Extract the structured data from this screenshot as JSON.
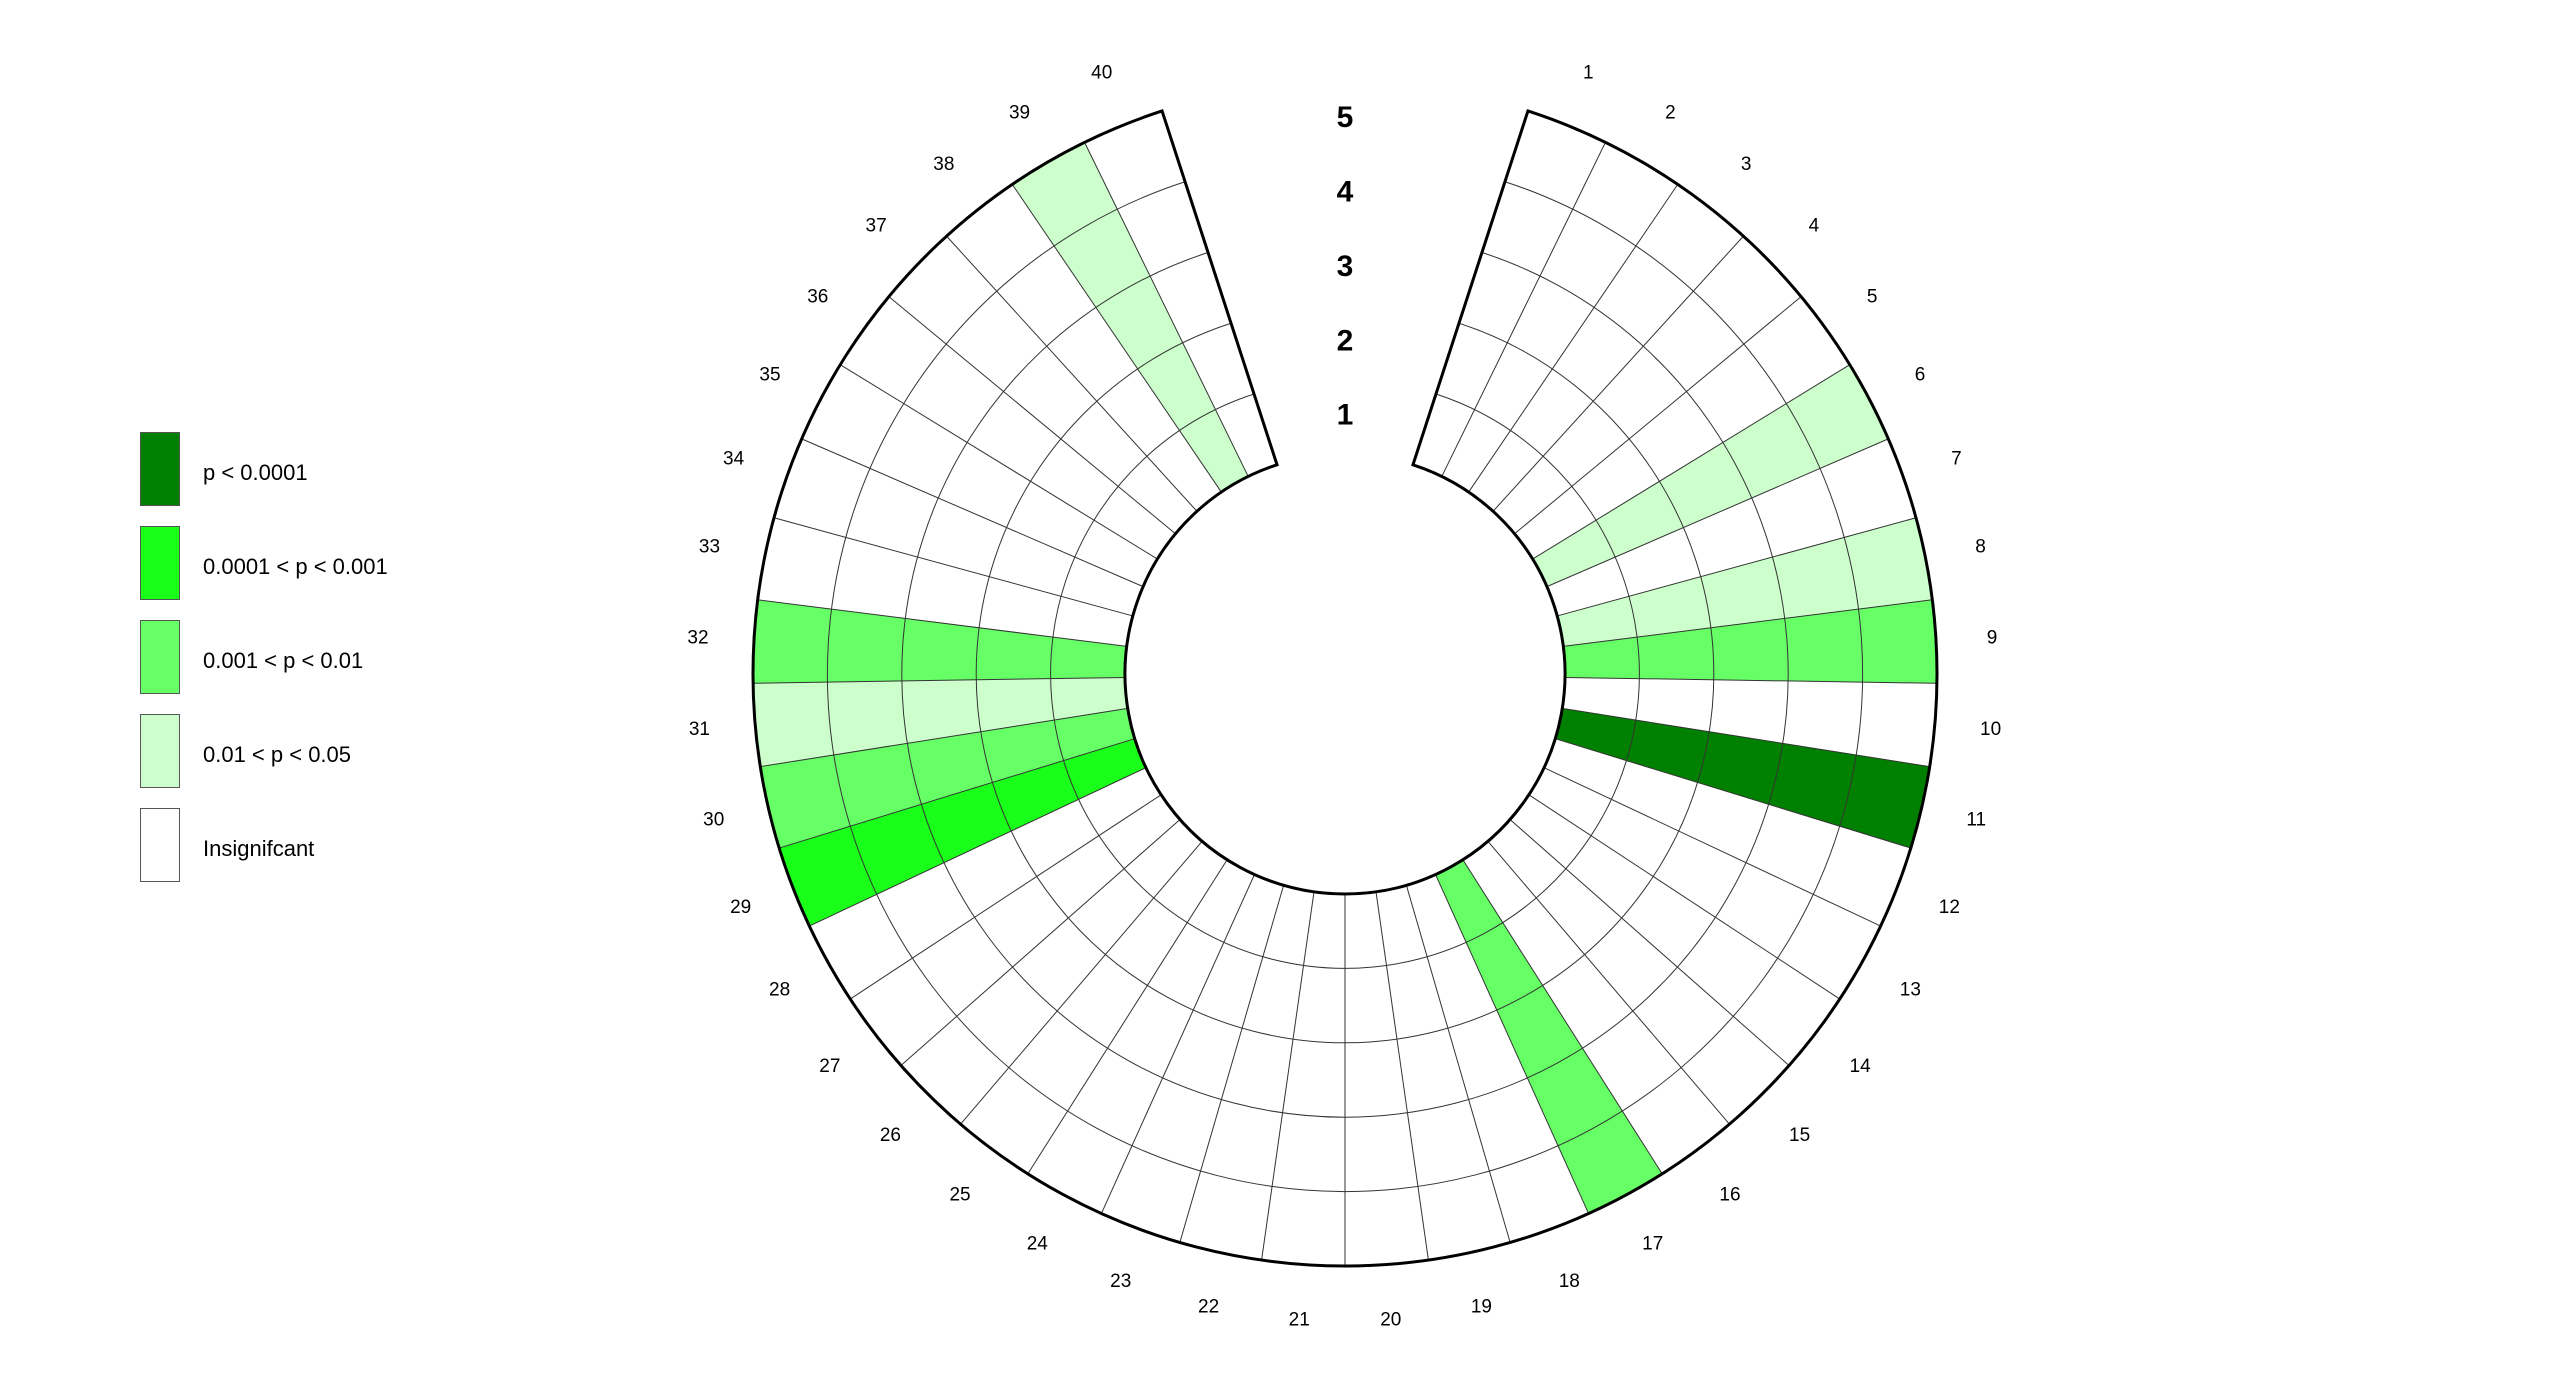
{
  "chart_data": {
    "type": "polar-heatmap",
    "title": "",
    "segments": [
      "1",
      "2",
      "3",
      "4",
      "5",
      "6",
      "7",
      "8",
      "9",
      "10",
      "11",
      "12",
      "13",
      "14",
      "15",
      "16",
      "17",
      "18",
      "19",
      "20",
      "21",
      "22",
      "23",
      "24",
      "25",
      "26",
      "27",
      "28",
      "29",
      "30",
      "31",
      "32",
      "33",
      "34",
      "35",
      "36",
      "37",
      "38",
      "39",
      "40"
    ],
    "rings": [
      "1",
      "2",
      "3",
      "4",
      "5"
    ],
    "categories": [
      {
        "key": "p1",
        "label": "p < 0.0001",
        "color": "#008000"
      },
      {
        "key": "p2",
        "label": "0.0001 < p < 0.001",
        "color": "#19ff19"
      },
      {
        "key": "p3",
        "label": "0.001 < p < 0.01",
        "color": "#66ff66"
      },
      {
        "key": "p4",
        "label": "0.01 < p < 0.05",
        "color": "#ccffcc"
      },
      {
        "key": "ns",
        "label": "Insignifcant",
        "color": "#ffffff"
      }
    ],
    "values": [
      [
        "ns",
        "ns",
        "ns",
        "ns",
        "ns"
      ],
      [
        "ns",
        "ns",
        "ns",
        "ns",
        "ns"
      ],
      [
        "ns",
        "ns",
        "ns",
        "ns",
        "ns"
      ],
      [
        "ns",
        "ns",
        "ns",
        "ns",
        "ns"
      ],
      [
        "ns",
        "ns",
        "ns",
        "ns",
        "ns"
      ],
      [
        "p4",
        "p4",
        "p4",
        "p4",
        "p4"
      ],
      [
        "ns",
        "ns",
        "ns",
        "ns",
        "ns"
      ],
      [
        "p4",
        "p4",
        "p4",
        "p4",
        "p4"
      ],
      [
        "p3",
        "p3",
        "p3",
        "p3",
        "p3"
      ],
      [
        "ns",
        "ns",
        "ns",
        "ns",
        "ns"
      ],
      [
        "p1",
        "p1",
        "p1",
        "p1",
        "p1"
      ],
      [
        "ns",
        "ns",
        "ns",
        "ns",
        "ns"
      ],
      [
        "ns",
        "ns",
        "ns",
        "ns",
        "ns"
      ],
      [
        "ns",
        "ns",
        "ns",
        "ns",
        "ns"
      ],
      [
        "ns",
        "ns",
        "ns",
        "ns",
        "ns"
      ],
      [
        "ns",
        "ns",
        "ns",
        "ns",
        "ns"
      ],
      [
        "p3",
        "p3",
        "p3",
        "p3",
        "p3"
      ],
      [
        "ns",
        "ns",
        "ns",
        "ns",
        "ns"
      ],
      [
        "ns",
        "ns",
        "ns",
        "ns",
        "ns"
      ],
      [
        "ns",
        "ns",
        "ns",
        "ns",
        "ns"
      ],
      [
        "ns",
        "ns",
        "ns",
        "ns",
        "ns"
      ],
      [
        "ns",
        "ns",
        "ns",
        "ns",
        "ns"
      ],
      [
        "ns",
        "ns",
        "ns",
        "ns",
        "ns"
      ],
      [
        "ns",
        "ns",
        "ns",
        "ns",
        "ns"
      ],
      [
        "ns",
        "ns",
        "ns",
        "ns",
        "ns"
      ],
      [
        "ns",
        "ns",
        "ns",
        "ns",
        "ns"
      ],
      [
        "ns",
        "ns",
        "ns",
        "ns",
        "ns"
      ],
      [
        "ns",
        "ns",
        "ns",
        "ns",
        "ns"
      ],
      [
        "p2",
        "p2",
        "p2",
        "p2",
        "p2"
      ],
      [
        "p3",
        "p3",
        "p3",
        "p3",
        "p3"
      ],
      [
        "p4",
        "p4",
        "p4",
        "p4",
        "p4"
      ],
      [
        "p3",
        "p3",
        "p3",
        "p3",
        "p3"
      ],
      [
        "ns",
        "ns",
        "ns",
        "ns",
        "ns"
      ],
      [
        "ns",
        "ns",
        "ns",
        "ns",
        "ns"
      ],
      [
        "ns",
        "ns",
        "ns",
        "ns",
        "ns"
      ],
      [
        "ns",
        "ns",
        "ns",
        "ns",
        "ns"
      ],
      [
        "ns",
        "ns",
        "ns",
        "ns",
        "ns"
      ],
      [
        "ns",
        "ns",
        "ns",
        "ns",
        "ns"
      ],
      [
        "p4",
        "p4",
        "p4",
        "p4",
        "p4"
      ],
      [
        "ns",
        "ns",
        "ns",
        "ns",
        "ns"
      ]
    ],
    "legend_position": "left",
    "grid": true
  }
}
